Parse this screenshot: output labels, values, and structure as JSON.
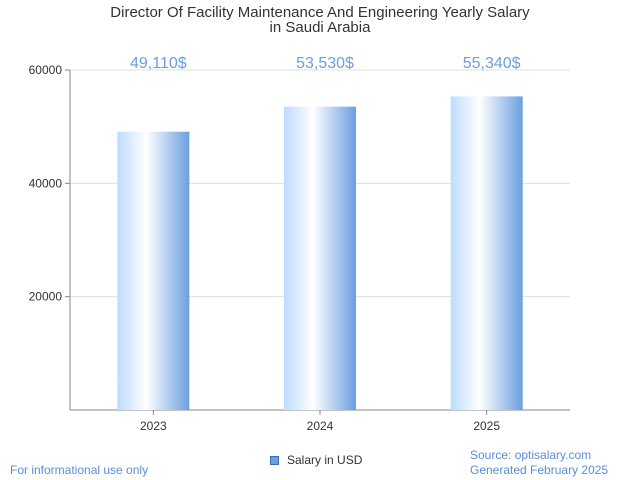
{
  "chart_data": {
    "type": "bar",
    "title_lines": [
      "Director Of Facility Maintenance And Engineering Yearly Salary",
      "in Saudi Arabia"
    ],
    "categories": [
      "2023",
      "2024",
      "2025"
    ],
    "series": [
      {
        "name": "Salary in USD",
        "values": [
          49110,
          53530,
          55340
        ],
        "data_labels": [
          "49,110$",
          "53,530$",
          "55,340$"
        ]
      }
    ],
    "ylim": [
      0,
      60000
    ],
    "yticks": [
      20000,
      40000,
      60000
    ],
    "ytick_labels": [
      "20000",
      "40000",
      "60000"
    ],
    "grid": true,
    "legend_position": "bottom-center",
    "colors": {
      "bar_light": "#cfe6ff",
      "bar_mid": "#ffffff",
      "bar_dark": "#6a9fe0",
      "label": "#6a9fe0",
      "grid": "#e0e0e0",
      "axis": "#888888"
    }
  },
  "footer": {
    "left_note": "For informational use only",
    "source": "Source: optisalary.com",
    "generated": "Generated February 2025"
  }
}
